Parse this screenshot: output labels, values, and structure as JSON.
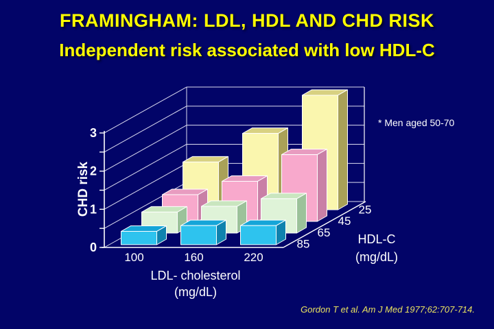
{
  "slide": {
    "title": "FRAMINGHAM: LDL, HDL AND CHD RISK",
    "subtitle": "Independent risk associated with low HDL-C",
    "note": "* Men aged 50-70",
    "citation": "Gordon T et al. Am J Med 1977;62:707-714.",
    "colors": {
      "background": "#020468",
      "title_text": "#FFFF00",
      "body_text": "#FFFFFF",
      "citation_text": "#EAE35F",
      "gridline": "#DCDCF0",
      "axis": "#FFFFFF"
    }
  },
  "chart_data": {
    "type": "bar",
    "projection": "3d",
    "title": "",
    "ylabel": "CHD risk",
    "xlabel": "LDL- cholesterol",
    "xlabel_units": "(mg/dL)",
    "zlabel": "HDL-C",
    "zlabel_units": "(mg/dL)",
    "categories": [
      "100",
      "160",
      "220"
    ],
    "y_ticks": [
      "0",
      "1",
      "2",
      "3"
    ],
    "ylim": [
      0,
      3
    ],
    "grid_step": 0.5,
    "legend_position": "none",
    "series": [
      {
        "name": "85",
        "values": [
          0.35,
          0.5,
          0.5
        ],
        "color_front": "#2EC3EE",
        "color_top": "#15A5D8",
        "color_side": "#0F82AE"
      },
      {
        "name": "65",
        "values": [
          0.55,
          0.7,
          0.9
        ],
        "color_front": "#DFF3D8",
        "color_top": "#C9E6BF",
        "color_side": "#9CC29A"
      },
      {
        "name": "45",
        "values": [
          0.7,
          1.05,
          1.75
        ],
        "color_front": "#F8A9CC",
        "color_top": "#E89CC0",
        "color_side": "#C980A6"
      },
      {
        "name": "25",
        "values": [
          1.25,
          2.0,
          3.0
        ],
        "color_front": "#FAF6AE",
        "color_top": "#D8D181",
        "color_side": "#A9A158"
      }
    ]
  }
}
